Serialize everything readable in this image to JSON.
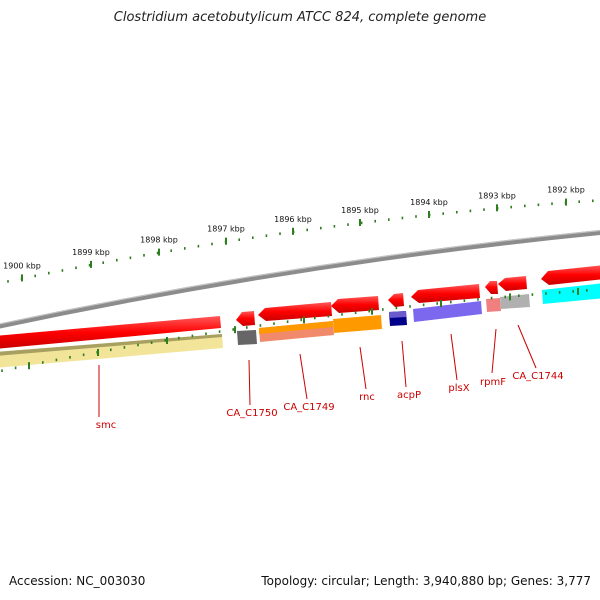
{
  "title": "Clostridium acetobutylicum ATCC 824, complete genome",
  "footer": {
    "accession": "Accession: NC_003030",
    "summary": "Topology: circular; Length: 3,940,880 bp; Genes: 3,777"
  },
  "ruler": {
    "labels": [
      "1900 kbp",
      "1899 kbp",
      "1898 kbp",
      "1897 kbp",
      "1896 kbp",
      "1895 kbp",
      "1894 kbp",
      "1893 kbp",
      "1892 kbp"
    ],
    "color": "#2e7d1e"
  },
  "colors": {
    "backbone": "#8c8c8c",
    "label": "#cc0000",
    "forward": "#ff0000"
  },
  "genes": [
    {
      "label": "smc",
      "color": "#f2e599"
    },
    {
      "label": "CA_C1750",
      "color": "#666666"
    },
    {
      "label": "CA_C1749",
      "color": "#f08a6a"
    },
    {
      "label": "rnc",
      "color": "#ff9900"
    },
    {
      "label": "acpP",
      "color": "#00008b"
    },
    {
      "label": "plsX",
      "color": "#7b68ee"
    },
    {
      "label": "rpmF",
      "color": "#f08080"
    },
    {
      "label": "CA_C1744",
      "color": "#b0b0b0"
    },
    {
      "label": "",
      "color": "#00ffff"
    }
  ]
}
